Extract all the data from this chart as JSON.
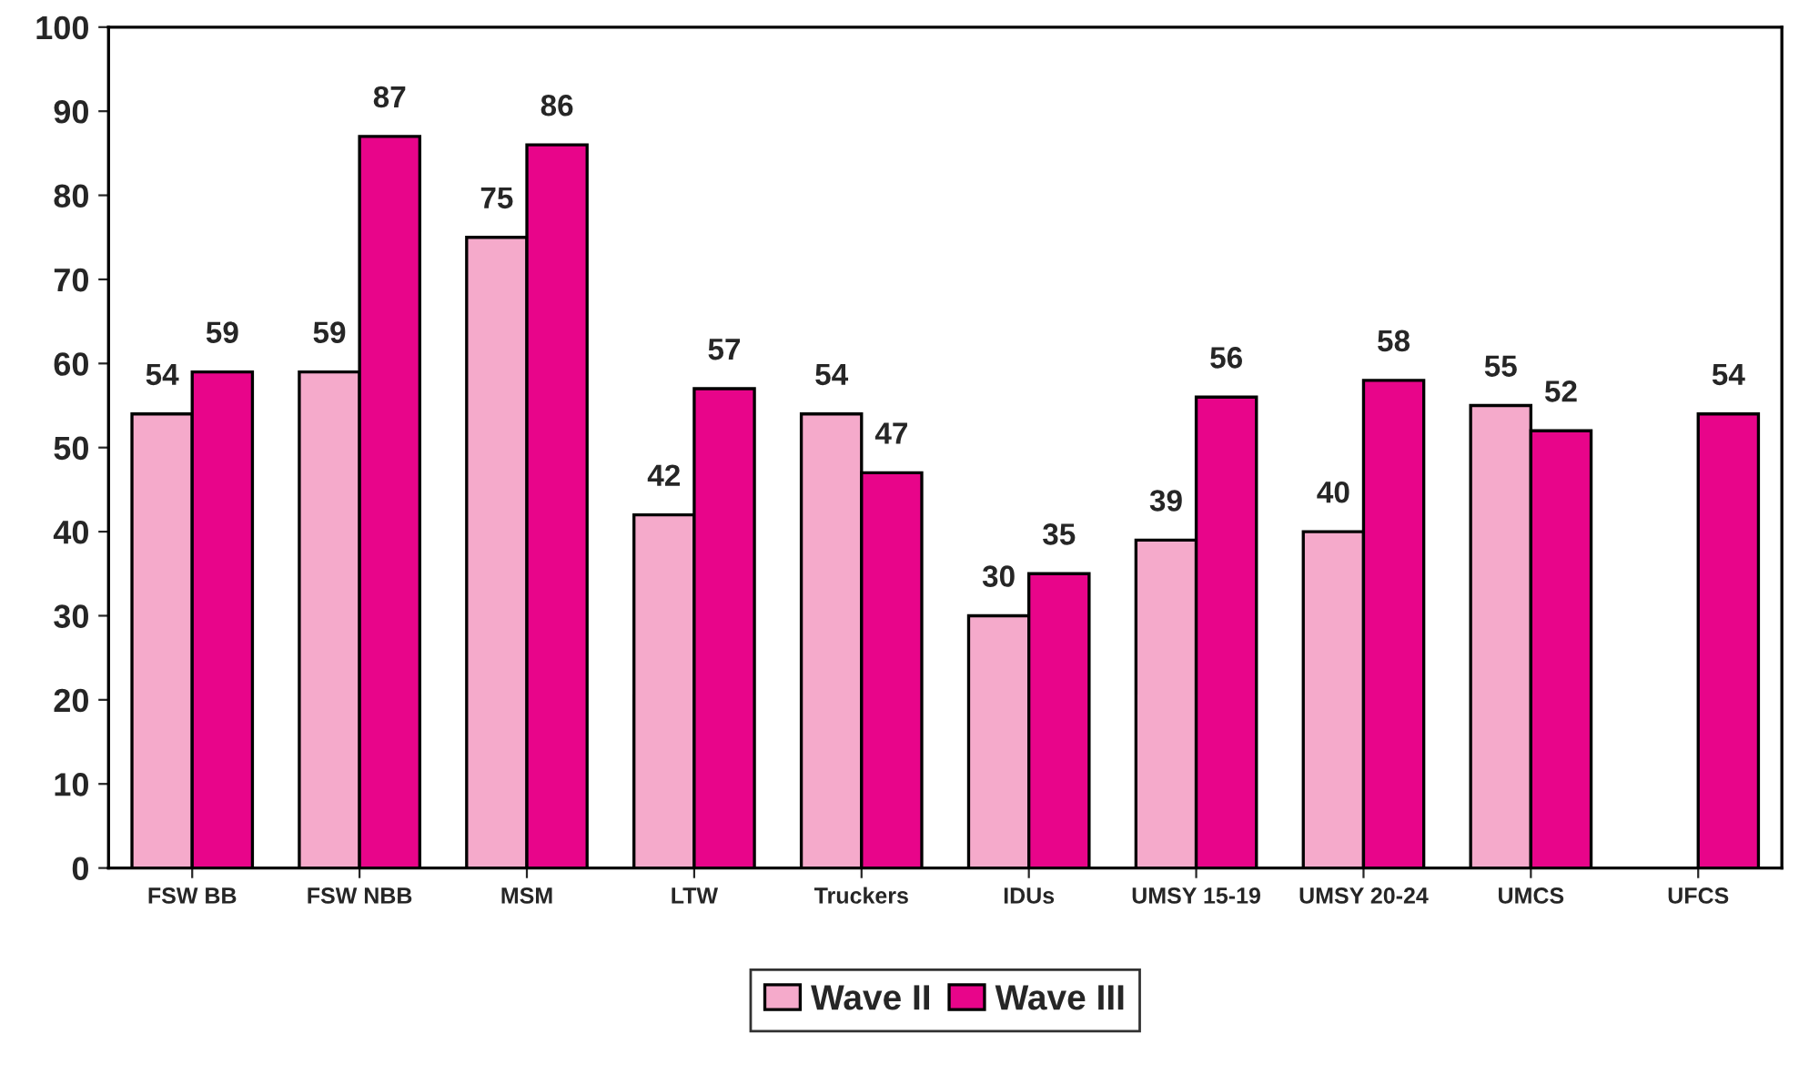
{
  "chart_data": {
    "type": "bar",
    "categories": [
      "FSW BB",
      "FSW NBB",
      "MSM",
      "LTW",
      "Truckers",
      "IDUs",
      "UMSY 15-19",
      "UMSY 20-24",
      "UMCS",
      "UFCS"
    ],
    "series": [
      {
        "name": "Wave II",
        "color": "#f5aacb",
        "values": [
          54,
          59,
          75,
          42,
          54,
          30,
          39,
          40,
          55,
          null
        ]
      },
      {
        "name": "Wave III",
        "color": "#e8058a",
        "values": [
          59,
          87,
          86,
          57,
          47,
          35,
          56,
          58,
          52,
          54
        ]
      }
    ],
    "ylim": [
      0,
      100
    ],
    "yticks": [
      0,
      10,
      20,
      30,
      40,
      50,
      60,
      70,
      80,
      90,
      100
    ],
    "data_labels": true,
    "grid": false,
    "legend": "bottom"
  }
}
